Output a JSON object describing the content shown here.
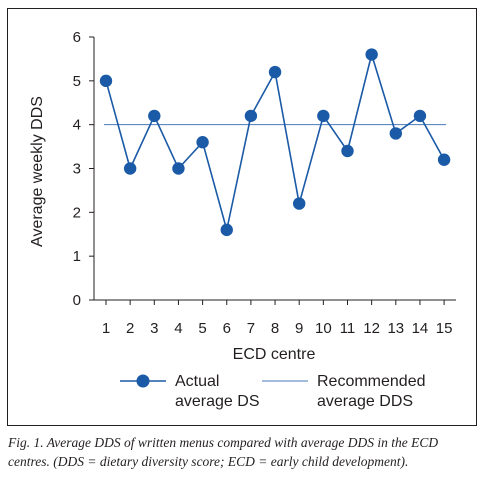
{
  "chart_data": {
    "type": "line",
    "xlabel": "ECD centre",
    "ylabel": "Average weekly DDS",
    "x": [
      1,
      2,
      3,
      4,
      5,
      6,
      7,
      8,
      9,
      10,
      11,
      12,
      13,
      14,
      15
    ],
    "ylim": [
      0,
      6
    ],
    "yticks": [
      0,
      1,
      2,
      3,
      4,
      5,
      6
    ],
    "grid": false,
    "legend_placement": "bottom",
    "series": [
      {
        "name": "Actual average DS",
        "name_lines": [
          "Actual",
          "average DS"
        ],
        "style": "line-markers",
        "color": "#1b5aa6",
        "values": [
          5.0,
          3.0,
          4.2,
          3.0,
          3.6,
          1.6,
          4.2,
          5.2,
          2.2,
          4.2,
          3.4,
          5.6,
          3.8,
          4.2,
          3.2
        ]
      },
      {
        "name": "Recommended average DDS",
        "name_lines": [
          "Recommended",
          "average DDS"
        ],
        "style": "line",
        "color": "#4a7ab8",
        "constant": 4.0
      }
    ]
  },
  "caption": {
    "lines": [
      "Fig. 1. Average DDS of written menus compared with average DDS in the ECD",
      "centres. (DDS = dietary diversity score; ECD = early child development)."
    ]
  }
}
